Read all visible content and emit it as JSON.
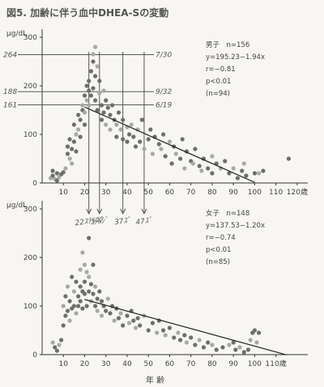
{
  "figure_title": "図5. 加齢に伴う血中DHEA-Sの変動",
  "xlabel_bottom": "年 齢",
  "chart_data": [
    {
      "type": "scatter",
      "panel": "top",
      "ylabel": "μg/dL",
      "xlim": [
        0,
        125
      ],
      "ylim": [
        0,
        310
      ],
      "x_ticks": [
        10,
        20,
        30,
        40,
        50,
        60,
        70,
        80,
        90,
        100,
        110,
        120
      ],
      "x_tick_labels": [
        "10",
        "20",
        "30",
        "40",
        "50",
        "60",
        "70",
        "80",
        "90",
        "100",
        "110",
        "120歳"
      ],
      "y_ticks": [
        0,
        100,
        200,
        300
      ],
      "stats": [
        "男子　n=156",
        "y=195.23−1.94x",
        "r=−0.81",
        "p<0.01",
        "(n=94)"
      ],
      "regression": {
        "x": [
          20,
          100
        ],
        "slope": -1.94,
        "intercept": 195.23
      },
      "points": [
        [
          4,
          10
        ],
        [
          5,
          25
        ],
        [
          5,
          15
        ],
        [
          6,
          8
        ],
        [
          7,
          20
        ],
        [
          7,
          5
        ],
        [
          8,
          12
        ],
        [
          9,
          18
        ],
        [
          10,
          22
        ],
        [
          11,
          30
        ],
        [
          12,
          60
        ],
        [
          12,
          75
        ],
        [
          13,
          50
        ],
        [
          13,
          90
        ],
        [
          14,
          70
        ],
        [
          14,
          40
        ],
        [
          15,
          120
        ],
        [
          15,
          85
        ],
        [
          16,
          100
        ],
        [
          16,
          65
        ],
        [
          17,
          140
        ],
        [
          17,
          110
        ],
        [
          18,
          130
        ],
        [
          18,
          95
        ],
        [
          19,
          160
        ],
        [
          19,
          150
        ],
        [
          20,
          180
        ],
        [
          20,
          145
        ],
        [
          20,
          120
        ],
        [
          21,
          200
        ],
        [
          21,
          170
        ],
        [
          22,
          210
        ],
        [
          22,
          190
        ],
        [
          22,
          160
        ],
        [
          23,
          230
        ],
        [
          23,
          180
        ],
        [
          24,
          265
        ],
        [
          24,
          250
        ],
        [
          24,
          195
        ],
        [
          25,
          280
        ],
        [
          25,
          220
        ],
        [
          25,
          170
        ],
        [
          26,
          240
        ],
        [
          26,
          150
        ],
        [
          27,
          210
        ],
        [
          27,
          185
        ],
        [
          28,
          160
        ],
        [
          28,
          130
        ],
        [
          29,
          190
        ],
        [
          29,
          145
        ],
        [
          30,
          170
        ],
        [
          30,
          120
        ],
        [
          31,
          155
        ],
        [
          32,
          140
        ],
        [
          32,
          110
        ],
        [
          33,
          160
        ],
        [
          34,
          130
        ],
        [
          35,
          120
        ],
        [
          35,
          95
        ],
        [
          36,
          145
        ],
        [
          37,
          110
        ],
        [
          38,
          130
        ],
        [
          38,
          90
        ],
        [
          40,
          115
        ],
        [
          40,
          85
        ],
        [
          41,
          100
        ],
        [
          42,
          120
        ],
        [
          43,
          95
        ],
        [
          44,
          75
        ],
        [
          45,
          110
        ],
        [
          46,
          85
        ],
        [
          47,
          130
        ],
        [
          48,
          70
        ],
        [
          50,
          90
        ],
        [
          51,
          110
        ],
        [
          52,
          60
        ],
        [
          53,
          95
        ],
        [
          55,
          80
        ],
        [
          56,
          70
        ],
        [
          57,
          100
        ],
        [
          58,
          55
        ],
        [
          60,
          85
        ],
        [
          61,
          40
        ],
        [
          62,
          75
        ],
        [
          63,
          60
        ],
        [
          65,
          50
        ],
        [
          66,
          90
        ],
        [
          67,
          30
        ],
        [
          68,
          65
        ],
        [
          70,
          45
        ],
        [
          71,
          40
        ],
        [
          72,
          70
        ],
        [
          74,
          35
        ],
        [
          75,
          25
        ],
        [
          76,
          50
        ],
        [
          78,
          30
        ],
        [
          80,
          55
        ],
        [
          80,
          20
        ],
        [
          82,
          40
        ],
        [
          84,
          30
        ],
        [
          86,
          45
        ],
        [
          88,
          20
        ],
        [
          90,
          30
        ],
        [
          92,
          10
        ],
        [
          94,
          25
        ],
        [
          95,
          40
        ],
        [
          96,
          15
        ],
        [
          100,
          20
        ],
        [
          102,
          20
        ],
        [
          104,
          25
        ],
        [
          116,
          50
        ]
      ],
      "reference_lines": [
        {
          "y": 264,
          "left_label": "264",
          "right_label": "7/30"
        },
        {
          "y": 188,
          "left_label": "188",
          "right_label": "9/32"
        },
        {
          "y": 161,
          "left_label": "161",
          "right_label": "6/19"
        }
      ],
      "age_markers": [
        {
          "x": 22,
          "label": "22ｽﾃﾙｺﾌ"
        },
        {
          "x": 27,
          "label": "ｺﾃﾙｼﾞ"
        },
        {
          "x": 38,
          "label": "37ｽﾞ"
        },
        {
          "x": 48,
          "label": "47ｽﾞ"
        }
      ]
    },
    {
      "type": "scatter",
      "panel": "bottom",
      "ylabel": "μg/dL",
      "xlim": [
        0,
        125
      ],
      "ylim": [
        0,
        310
      ],
      "x_ticks": [
        10,
        20,
        30,
        40,
        50,
        60,
        70,
        80,
        90,
        100,
        110
      ],
      "x_tick_labels": [
        "10",
        "20",
        "30",
        "40",
        "50",
        "60",
        "70",
        "80",
        "90",
        "100",
        "110歳"
      ],
      "y_ticks": [
        0,
        100,
        200,
        300
      ],
      "stats": [
        "女子　n=148",
        "y=137.53−1.20x",
        "r=−0.74",
        "p<0.01",
        "(n=85)"
      ],
      "regression": {
        "x": [
          20,
          115
        ],
        "slope": -1.2,
        "intercept": 137.53
      },
      "points": [
        [
          5,
          25
        ],
        [
          6,
          15
        ],
        [
          7,
          8
        ],
        [
          8,
          20
        ],
        [
          9,
          30
        ],
        [
          10,
          60
        ],
        [
          10,
          100
        ],
        [
          11,
          80
        ],
        [
          11,
          120
        ],
        [
          12,
          140
        ],
        [
          12,
          90
        ],
        [
          13,
          110
        ],
        [
          13,
          70
        ],
        [
          14,
          160
        ],
        [
          14,
          95
        ],
        [
          15,
          130
        ],
        [
          15,
          100
        ],
        [
          16,
          150
        ],
        [
          16,
          85
        ],
        [
          17,
          120
        ],
        [
          17,
          100
        ],
        [
          18,
          175
        ],
        [
          18,
          140
        ],
        [
          18,
          110
        ],
        [
          19,
          210
        ],
        [
          19,
          130
        ],
        [
          19,
          95
        ],
        [
          20,
          185
        ],
        [
          20,
          150
        ],
        [
          20,
          125
        ],
        [
          21,
          170
        ],
        [
          21,
          100
        ],
        [
          22,
          240
        ],
        [
          22,
          160
        ],
        [
          22,
          130
        ],
        [
          23,
          145
        ],
        [
          23,
          110
        ],
        [
          24,
          185
        ],
        [
          24,
          125
        ],
        [
          25,
          140
        ],
        [
          25,
          100
        ],
        [
          26,
          115
        ],
        [
          26,
          90
        ],
        [
          27,
          130
        ],
        [
          28,
          110
        ],
        [
          28,
          80
        ],
        [
          29,
          100
        ],
        [
          30,
          90
        ],
        [
          31,
          115
        ],
        [
          32,
          85
        ],
        [
          33,
          100
        ],
        [
          34,
          70
        ],
        [
          35,
          95
        ],
        [
          36,
          75
        ],
        [
          37,
          85
        ],
        [
          38,
          60
        ],
        [
          40,
          80
        ],
        [
          41,
          65
        ],
        [
          42,
          90
        ],
        [
          43,
          70
        ],
        [
          44,
          55
        ],
        [
          45,
          75
        ],
        [
          46,
          60
        ],
        [
          48,
          80
        ],
        [
          50,
          50
        ],
        [
          52,
          65
        ],
        [
          54,
          45
        ],
        [
          55,
          70
        ],
        [
          57,
          50
        ],
        [
          58,
          40
        ],
        [
          60,
          55
        ],
        [
          62,
          35
        ],
        [
          64,
          45
        ],
        [
          65,
          30
        ],
        [
          67,
          40
        ],
        [
          68,
          25
        ],
        [
          70,
          35
        ],
        [
          72,
          20
        ],
        [
          74,
          30
        ],
        [
          76,
          15
        ],
        [
          78,
          25
        ],
        [
          80,
          20
        ],
        [
          82,
          10
        ],
        [
          85,
          15
        ],
        [
          88,
          20
        ],
        [
          90,
          25
        ],
        [
          91,
          10
        ],
        [
          93,
          15
        ],
        [
          95,
          5
        ],
        [
          97,
          10
        ],
        [
          98,
          30
        ],
        [
          99,
          45
        ],
        [
          100,
          50
        ],
        [
          101,
          25
        ],
        [
          102,
          45
        ]
      ]
    }
  ]
}
